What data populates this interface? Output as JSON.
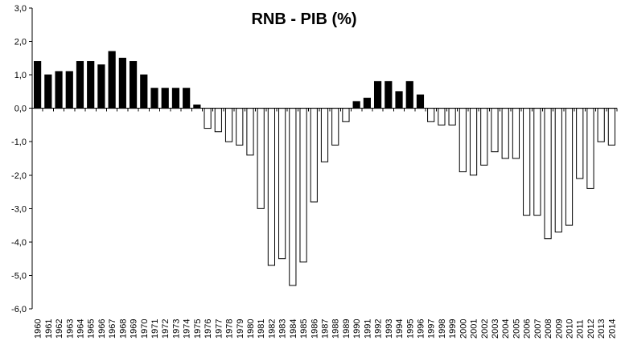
{
  "chart_data": {
    "type": "bar",
    "title": "RNB - PIB (%)",
    "xlabel": "",
    "ylabel": "",
    "ylim": [
      -6.0,
      3.0
    ],
    "ytick_step": 1.0,
    "ytick_labels": [
      "3,0",
      "2,0",
      "1,0",
      "0,0",
      "-1,0",
      "-2,0",
      "-3,0",
      "-4,0",
      "-5,0",
      "-6,0"
    ],
    "grid": false,
    "legend": "none",
    "colors": {
      "positive": "#000000",
      "negative": "#ffffff",
      "outline": "#000000"
    },
    "categories": [
      "1960",
      "1961",
      "1962",
      "1963",
      "1964",
      "1965",
      "1966",
      "1967",
      "1968",
      "1969",
      "1970",
      "1971",
      "1972",
      "1973",
      "1974",
      "1975",
      "1976",
      "1977",
      "1978",
      "1979",
      "1980",
      "1981",
      "1982",
      "1983",
      "1984",
      "1985",
      "1986",
      "1987",
      "1988",
      "1989",
      "1990",
      "1991",
      "1992",
      "1993",
      "1994",
      "1995",
      "1996",
      "1997",
      "1998",
      "1999",
      "2000",
      "2001",
      "2002",
      "2003",
      "2004",
      "2005",
      "2006",
      "2007",
      "2008",
      "2009",
      "2010",
      "2011",
      "2012",
      "2013",
      "2014"
    ],
    "values": [
      1.4,
      1.0,
      1.1,
      1.1,
      1.4,
      1.4,
      1.3,
      1.7,
      1.5,
      1.4,
      1.0,
      0.6,
      0.6,
      0.6,
      0.6,
      0.1,
      -0.6,
      -0.7,
      -1.0,
      -1.1,
      -1.4,
      -3.0,
      -4.7,
      -4.5,
      -5.3,
      -4.6,
      -2.8,
      -1.6,
      -1.1,
      -0.4,
      0.2,
      0.3,
      0.8,
      0.8,
      0.5,
      0.8,
      0.4,
      -0.4,
      -0.5,
      -0.5,
      -1.9,
      -2.0,
      -1.7,
      -1.3,
      -1.5,
      -1.5,
      -3.2,
      -3.2,
      -3.9,
      -3.7,
      -3.5,
      -2.1,
      -2.4,
      -1.0,
      -1.1
    ]
  }
}
